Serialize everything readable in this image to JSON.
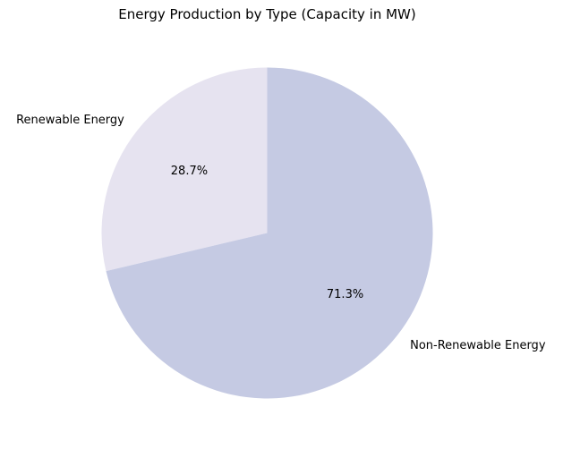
{
  "chart_data": {
    "type": "pie",
    "title": "Energy Production by Type (Capacity in MW)",
    "categories": [
      "Renewable Energy",
      "Non-Renewable Energy"
    ],
    "values": [
      28.7,
      71.3
    ],
    "percent_labels": [
      "28.7%",
      "71.3%"
    ],
    "colors": [
      "#e6e3f0",
      "#c5cae3"
    ],
    "start_angle_deg": 90,
    "direction": "counterclockwise",
    "legend": "none"
  }
}
